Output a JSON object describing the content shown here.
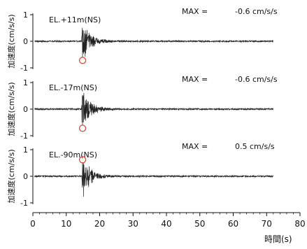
{
  "chart_data": {
    "type": "line",
    "shared_x_axis": {
      "label": "時間(s)",
      "range": [
        0,
        80
      ],
      "ticks": [
        "0",
        "10",
        "20",
        "30",
        "40",
        "50",
        "60",
        "70",
        "80"
      ]
    },
    "y_axis_ticks": [
      "1",
      "0",
      "-1"
    ],
    "y_range": [
      -1,
      1
    ],
    "max_prefix": "MAX =",
    "panels": [
      {
        "label": "EL.+11m(NS)",
        "ylabel": "加速度(cm/s/s)",
        "max_value": "-0.6 cm/s/s",
        "peak_time": 14.9,
        "peak_value": -0.6,
        "record_end": 72
      },
      {
        "label": "EL.-17m(NS)",
        "ylabel": "加速度(cm/s/s)",
        "max_value": "-0.6 cm/s/s",
        "peak_time": 14.9,
        "peak_value": -0.6,
        "record_end": 72
      },
      {
        "label": "EL.-90m(NS)",
        "ylabel": "加速度(cm/s/s)",
        "max_value": "0.5 cm/s/s",
        "peak_time": 14.9,
        "peak_value": 0.5,
        "record_end": 72
      }
    ],
    "colors": {
      "trace": "#222222",
      "peak_marker": "#d0452a",
      "axis": "#111111"
    }
  }
}
